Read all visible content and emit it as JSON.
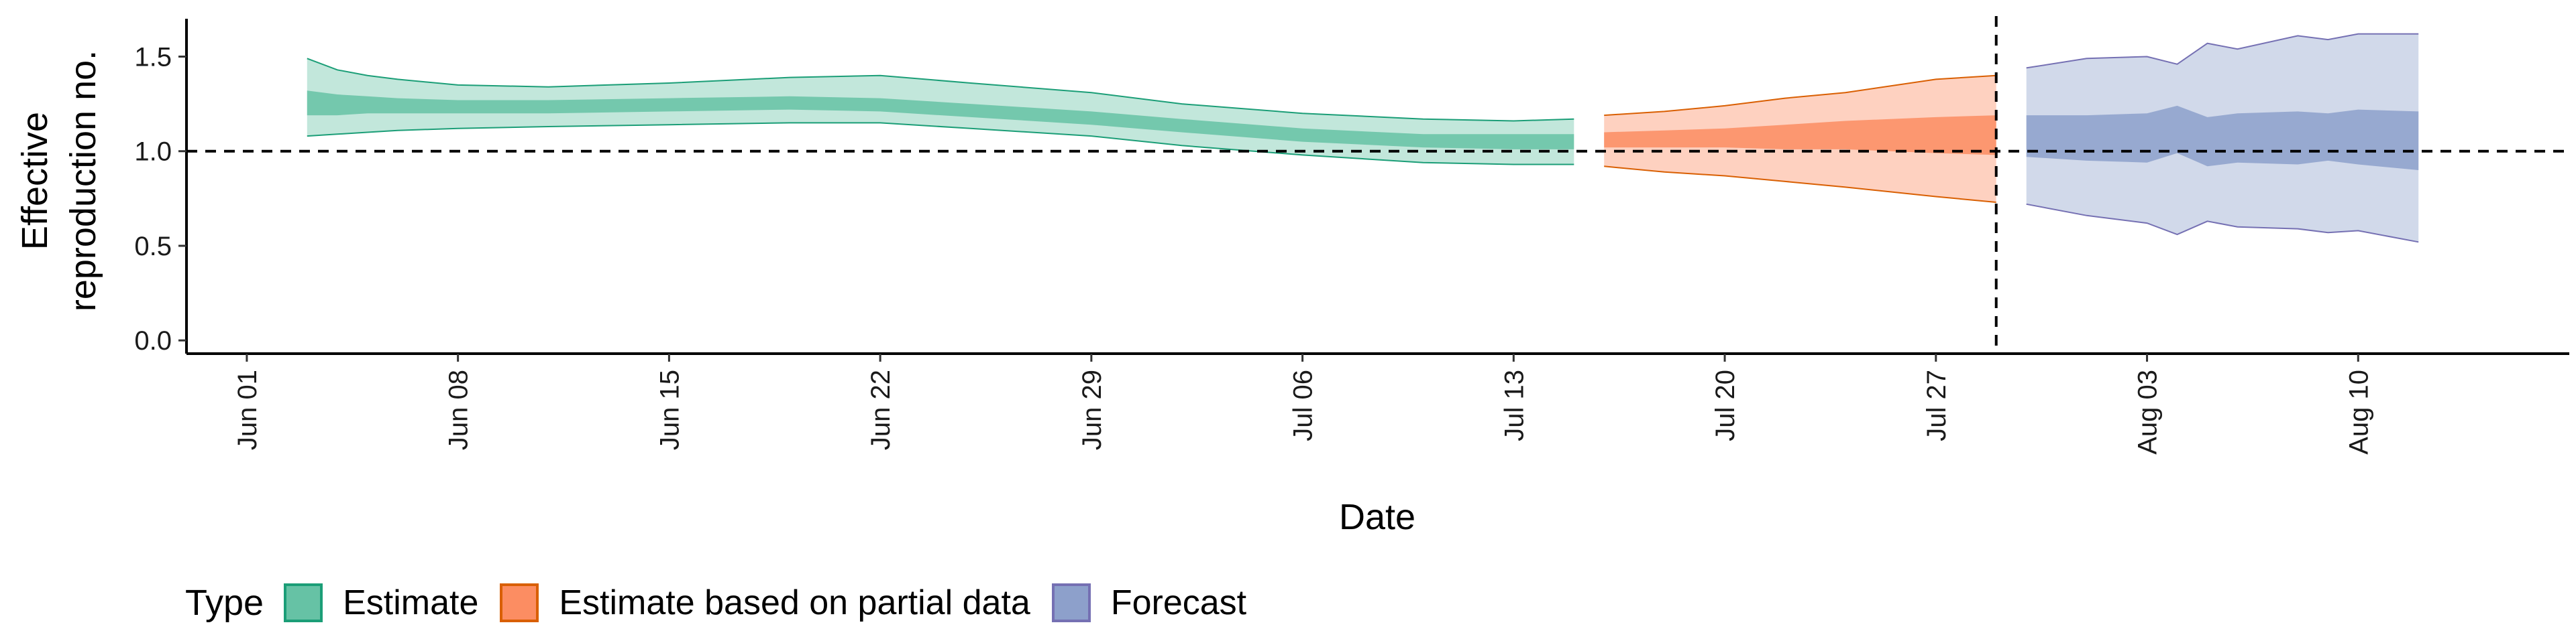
{
  "chart_data": {
    "type": "area",
    "title": "",
    "xlabel": "Date",
    "ylabel": [
      "Effective",
      "reproduction no."
    ],
    "x_type": "date",
    "x_range": [
      "2020-05-30",
      "2020-08-17"
    ],
    "x_ticks": [
      {
        "date": "2020-06-01",
        "label": "Jun 01"
      },
      {
        "date": "2020-06-08",
        "label": "Jun 08"
      },
      {
        "date": "2020-06-15",
        "label": "Jun 15"
      },
      {
        "date": "2020-06-22",
        "label": "Jun 22"
      },
      {
        "date": "2020-06-29",
        "label": "Jun 29"
      },
      {
        "date": "2020-07-06",
        "label": "Jul 06"
      },
      {
        "date": "2020-07-13",
        "label": "Jul 13"
      },
      {
        "date": "2020-07-20",
        "label": "Jul 20"
      },
      {
        "date": "2020-07-27",
        "label": "Jul 27"
      },
      {
        "date": "2020-08-03",
        "label": "Aug 03"
      },
      {
        "date": "2020-08-10",
        "label": "Aug 10"
      }
    ],
    "y_ticks": [
      {
        "value": 0.0,
        "label": "0.0"
      },
      {
        "value": 0.5,
        "label": "0.5"
      },
      {
        "value": 1.0,
        "label": "1.0"
      },
      {
        "value": 1.5,
        "label": "1.5"
      }
    ],
    "ylim": [
      -0.07,
      1.7
    ],
    "reference_line_y": 1.0,
    "reference_line_x": "2020-07-29",
    "grid": false,
    "legend": {
      "title": "Type",
      "position": "bottom-left"
    },
    "series": [
      {
        "name": "Estimate",
        "fill": "#66C2A5",
        "stroke": "#1B9E77",
        "points": [
          {
            "date": "2020-06-03",
            "lo90": 1.08,
            "lo50": 1.19,
            "hi50": 1.32,
            "hi90": 1.49
          },
          {
            "date": "2020-06-04",
            "lo90": 1.09,
            "lo50": 1.19,
            "hi50": 1.3,
            "hi90": 1.43
          },
          {
            "date": "2020-06-05",
            "lo90": 1.1,
            "lo50": 1.2,
            "hi50": 1.29,
            "hi90": 1.4
          },
          {
            "date": "2020-06-06",
            "lo90": 1.11,
            "lo50": 1.2,
            "hi50": 1.28,
            "hi90": 1.38
          },
          {
            "date": "2020-06-08",
            "lo90": 1.12,
            "lo50": 1.2,
            "hi50": 1.27,
            "hi90": 1.35
          },
          {
            "date": "2020-06-11",
            "lo90": 1.13,
            "lo50": 1.2,
            "hi50": 1.27,
            "hi90": 1.34
          },
          {
            "date": "2020-06-15",
            "lo90": 1.14,
            "lo50": 1.21,
            "hi50": 1.28,
            "hi90": 1.36
          },
          {
            "date": "2020-06-19",
            "lo90": 1.15,
            "lo50": 1.22,
            "hi50": 1.29,
            "hi90": 1.39
          },
          {
            "date": "2020-06-22",
            "lo90": 1.15,
            "lo50": 1.21,
            "hi50": 1.28,
            "hi90": 1.4
          },
          {
            "date": "2020-06-25",
            "lo90": 1.12,
            "lo50": 1.18,
            "hi50": 1.25,
            "hi90": 1.36
          },
          {
            "date": "2020-06-29",
            "lo90": 1.08,
            "lo50": 1.14,
            "hi50": 1.21,
            "hi90": 1.31
          },
          {
            "date": "2020-07-02",
            "lo90": 1.03,
            "lo50": 1.1,
            "hi50": 1.17,
            "hi90": 1.25
          },
          {
            "date": "2020-07-06",
            "lo90": 0.98,
            "lo50": 1.05,
            "hi50": 1.12,
            "hi90": 1.2
          },
          {
            "date": "2020-07-10",
            "lo90": 0.94,
            "lo50": 1.02,
            "hi50": 1.09,
            "hi90": 1.17
          },
          {
            "date": "2020-07-13",
            "lo90": 0.93,
            "lo50": 1.01,
            "hi50": 1.09,
            "hi90": 1.16
          },
          {
            "date": "2020-07-15",
            "lo90": 0.93,
            "lo50": 1.01,
            "hi50": 1.09,
            "hi90": 1.17
          }
        ]
      },
      {
        "name": "Estimate based on partial data",
        "fill": "#FC8D62",
        "stroke": "#D95F02",
        "points": [
          {
            "date": "2020-07-16",
            "lo90": 0.92,
            "lo50": 1.02,
            "hi50": 1.1,
            "hi90": 1.19
          },
          {
            "date": "2020-07-18",
            "lo90": 0.89,
            "lo50": 1.02,
            "hi50": 1.11,
            "hi90": 1.21
          },
          {
            "date": "2020-07-20",
            "lo90": 0.87,
            "lo50": 1.02,
            "hi50": 1.12,
            "hi90": 1.24
          },
          {
            "date": "2020-07-22",
            "lo90": 0.84,
            "lo50": 1.01,
            "hi50": 1.14,
            "hi90": 1.28
          },
          {
            "date": "2020-07-24",
            "lo90": 0.81,
            "lo50": 1.01,
            "hi50": 1.16,
            "hi90": 1.31
          },
          {
            "date": "2020-07-27",
            "lo90": 0.76,
            "lo50": 0.99,
            "hi50": 1.18,
            "hi90": 1.38
          },
          {
            "date": "2020-07-29",
            "lo90": 0.73,
            "lo50": 0.98,
            "hi50": 1.19,
            "hi90": 1.4
          }
        ]
      },
      {
        "name": "Forecast",
        "fill": "#8DA0CB",
        "stroke": "#7570B3",
        "points": [
          {
            "date": "2020-07-30",
            "lo90": 0.72,
            "lo50": 0.97,
            "hi50": 1.19,
            "hi90": 1.44
          },
          {
            "date": "2020-08-01",
            "lo90": 0.66,
            "lo50": 0.95,
            "hi50": 1.19,
            "hi90": 1.49
          },
          {
            "date": "2020-08-03",
            "lo90": 0.62,
            "lo50": 0.94,
            "hi50": 1.2,
            "hi90": 1.5
          },
          {
            "date": "2020-08-04",
            "lo90": 0.56,
            "lo50": 0.99,
            "hi50": 1.24,
            "hi90": 1.46
          },
          {
            "date": "2020-08-05",
            "lo90": 0.63,
            "lo50": 0.92,
            "hi50": 1.18,
            "hi90": 1.57
          },
          {
            "date": "2020-08-06",
            "lo90": 0.6,
            "lo50": 0.94,
            "hi50": 1.2,
            "hi90": 1.54
          },
          {
            "date": "2020-08-08",
            "lo90": 0.59,
            "lo50": 0.93,
            "hi50": 1.21,
            "hi90": 1.61
          },
          {
            "date": "2020-08-09",
            "lo90": 0.57,
            "lo50": 0.95,
            "hi50": 1.2,
            "hi90": 1.59
          },
          {
            "date": "2020-08-10",
            "lo90": 0.58,
            "lo50": 0.93,
            "hi50": 1.22,
            "hi90": 1.62
          },
          {
            "date": "2020-08-12",
            "lo90": 0.52,
            "lo50": 0.9,
            "hi50": 1.21,
            "hi90": 1.62
          }
        ]
      }
    ]
  }
}
